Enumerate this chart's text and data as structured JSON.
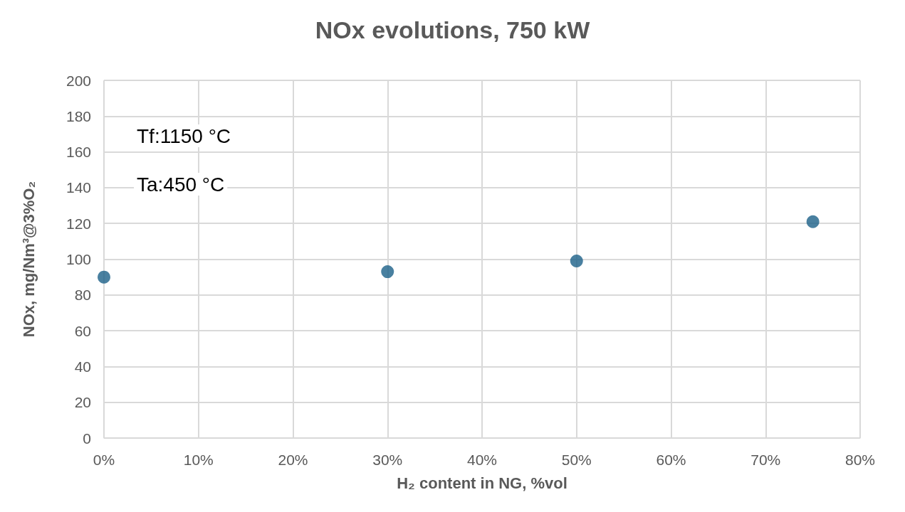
{
  "chart_data": {
    "type": "scatter",
    "title": "NOx evolutions, 750 kW",
    "xlabel": "H₂ content in NG, %vol",
    "ylabel": "NOx, mg/Nm³@3%O₂",
    "x": [
      0,
      30,
      50,
      75
    ],
    "values": [
      90,
      93,
      99,
      121
    ],
    "color": "#1b6088",
    "marker": "circle",
    "xlim": [
      0,
      80
    ],
    "xticks": [
      {
        "value": 0,
        "label": "0%"
      },
      {
        "value": 10,
        "label": "10%"
      },
      {
        "value": 20,
        "label": "20%"
      },
      {
        "value": 30,
        "label": "30%"
      },
      {
        "value": 40,
        "label": "40%"
      },
      {
        "value": 50,
        "label": "50%"
      },
      {
        "value": 60,
        "label": "60%"
      },
      {
        "value": 70,
        "label": "70%"
      },
      {
        "value": 80,
        "label": "80%"
      }
    ],
    "ylim": [
      0,
      200
    ],
    "yticks": [
      0,
      20,
      40,
      60,
      80,
      100,
      120,
      140,
      160,
      180,
      200
    ],
    "grid": true,
    "annotations": [
      "Tf:1150 °C",
      "Ta:450 °C"
    ]
  }
}
